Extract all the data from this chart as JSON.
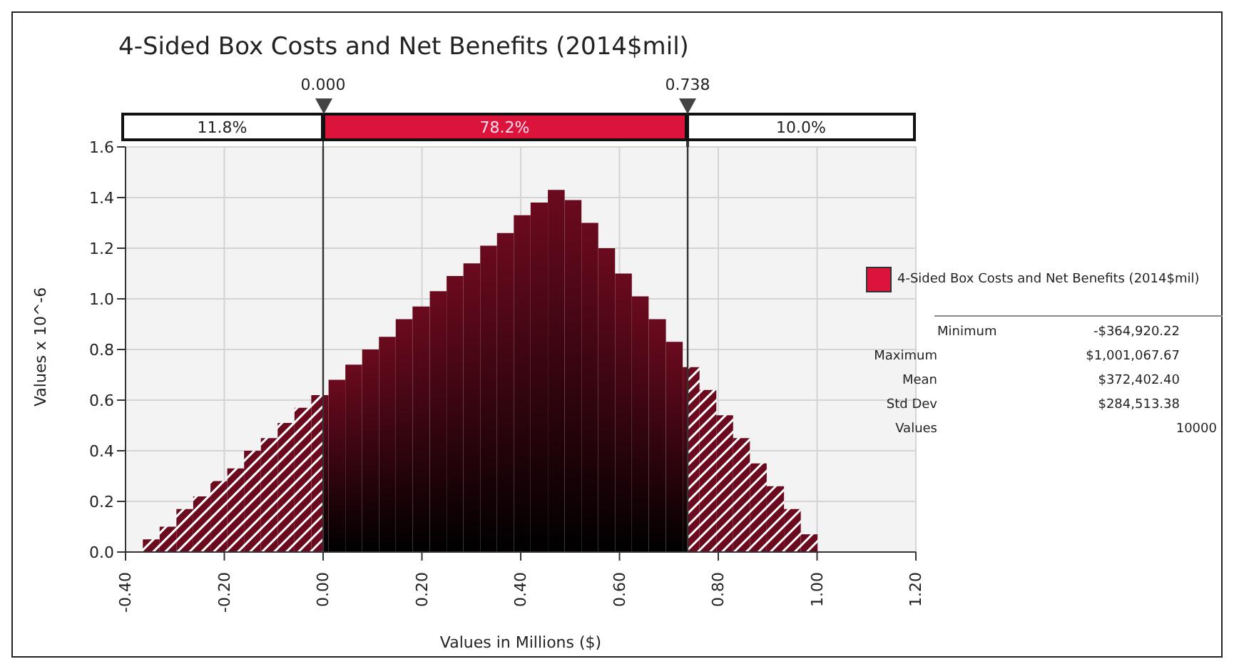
{
  "chart_data": {
    "type": "histogram",
    "title": "4-Sided Box Costs and Net Benefits (2014$mil)",
    "xlabel": "Values in Millions ($)",
    "ylabel": "Values x 10^-6",
    "bins": [
      -0.365,
      -0.331,
      -0.297,
      -0.263,
      -0.228,
      -0.194,
      -0.16,
      -0.126,
      -0.092,
      -0.058,
      -0.024,
      0,
      0.011,
      0.045,
      0.079,
      0.113,
      0.147,
      0.181,
      0.216,
      0.25,
      0.284,
      0.318,
      0.352,
      0.386,
      0.42,
      0.455,
      0.489,
      0.523,
      0.557,
      0.591,
      0.625,
      0.659,
      0.694,
      0.728,
      0.738,
      0.762,
      0.796,
      0.83,
      0.864,
      0.898,
      0.933,
      0.967,
      1.001
    ],
    "series": [
      {
        "name": "4-Sided Box Costs and Net Benefits (2014$mil)",
        "color": "#6b0a1e",
        "values": [
          0.05,
          0.1,
          0.17,
          0.22,
          0.28,
          0.33,
          0.4,
          0.45,
          0.51,
          0.57,
          0.62,
          0.62,
          0.68,
          0.74,
          0.8,
          0.85,
          0.92,
          0.97,
          1.03,
          1.09,
          1.14,
          1.21,
          1.26,
          1.33,
          1.38,
          1.43,
          1.39,
          1.3,
          1.2,
          1.1,
          1.01,
          0.92,
          0.83,
          0.73,
          0.73,
          0.64,
          0.54,
          0.45,
          0.35,
          0.26,
          0.17,
          0.07
        ]
      }
    ],
    "xlim": [
      -0.4,
      1.2
    ],
    "xticks": [
      {
        "value": -0.4,
        "label": "-0.40"
      },
      {
        "value": -0.2,
        "label": "-0.20"
      },
      {
        "value": 0,
        "label": "0.00"
      },
      {
        "value": 0.2,
        "label": "0.20"
      },
      {
        "value": 0.4,
        "label": "0.40"
      },
      {
        "value": 0.6,
        "label": "0.60"
      },
      {
        "value": 0.8,
        "label": "0.80"
      },
      {
        "value": 1,
        "label": "1.00"
      },
      {
        "value": 1.2,
        "label": "1.20"
      }
    ],
    "ylim": [
      0,
      1.6
    ],
    "yticks": [
      {
        "value": 0,
        "label": "0.0"
      },
      {
        "value": 0.2,
        "label": "0.2"
      },
      {
        "value": 0.4,
        "label": "0.4"
      },
      {
        "value": 0.6,
        "label": "0.6"
      },
      {
        "value": 0.8,
        "label": "0.8"
      },
      {
        "value": 1,
        "label": "1.0"
      },
      {
        "value": 1.2,
        "label": "1.2"
      },
      {
        "value": 1.4,
        "label": "1.4"
      },
      {
        "value": 1.6,
        "label": "1.6"
      }
    ],
    "ref_lines": [
      {
        "axis": "x",
        "value": 0,
        "label": "0.000",
        "color": "#333333"
      },
      {
        "axis": "x",
        "value": 0.738,
        "label": "0.738",
        "color": "#333333"
      }
    ],
    "annotations": [
      "11.8%",
      "78.2%",
      "10.0%",
      "Minimum",
      "-$364,920.22",
      "Maximum",
      "$1,001,067.67",
      "Mean",
      "$372,402.40",
      "Std Dev",
      "$284,513.38",
      "Values",
      "10000"
    ],
    "grid": true,
    "legend": "right"
  }
}
